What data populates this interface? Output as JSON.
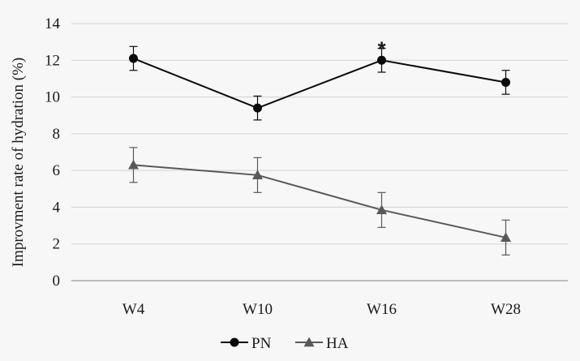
{
  "chart_data": {
    "type": "line",
    "categories": [
      "W4",
      "W10",
      "W16",
      "W28"
    ],
    "ylabel": "Improvment rate of hydration (%)",
    "xlabel": "",
    "ylim": [
      0,
      14
    ],
    "yticks": [
      "0",
      "2",
      "4",
      "6",
      "8",
      "10",
      "12",
      "14"
    ],
    "grid": true,
    "legend_position": "bottom-center",
    "series": [
      {
        "name": "PN",
        "values": [
          12.1,
          9.4,
          12.0,
          10.8
        ],
        "error": [
          0.65,
          0.65,
          0.65,
          0.65
        ],
        "marker": "circle",
        "color": "#0a0a0a"
      },
      {
        "name": "HA",
        "values": [
          6.3,
          5.75,
          3.85,
          2.35
        ],
        "error": [
          0.95,
          0.95,
          0.95,
          0.95
        ],
        "marker": "triangle",
        "color": "#595959"
      }
    ],
    "annotations": [
      {
        "text": "*",
        "category": "W16",
        "y": 12.65
      }
    ]
  }
}
